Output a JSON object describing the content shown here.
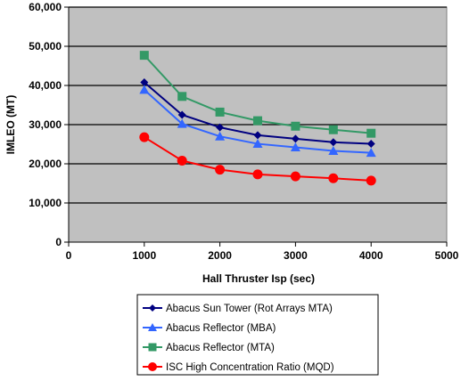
{
  "chart_data": {
    "type": "line",
    "title": "",
    "xlabel": "Hall Thruster Isp (sec)",
    "ylabel": "IMLEO (MT)",
    "xlim": [
      0,
      5000
    ],
    "ylim": [
      0,
      60000
    ],
    "x_ticks": [
      "0",
      "1000",
      "2000",
      "3000",
      "4000",
      "5000"
    ],
    "y_ticks": [
      "0",
      "10,000",
      "20,000",
      "30,000",
      "40,000",
      "50,000",
      "60,000"
    ],
    "x": [
      1000,
      1500,
      2000,
      2500,
      3000,
      3500,
      4000
    ],
    "grid": "horizontal major gridlines",
    "legend_placement": "bottom",
    "series": [
      {
        "name": "Abacus Sun Tower (Rot Arrays MTA)",
        "values": [
          40800,
          32500,
          29300,
          27300,
          26400,
          25500,
          25100
        ],
        "color": "#000080",
        "marker": "diamond"
      },
      {
        "name": "Abacus Reflector (MBA)",
        "values": [
          38900,
          30200,
          27000,
          25100,
          24200,
          23300,
          22800
        ],
        "color": "#3366ff",
        "marker": "triangle"
      },
      {
        "name": "Abacus Reflector (MTA)",
        "values": [
          47700,
          37200,
          33200,
          31000,
          29600,
          28700,
          27800
        ],
        "color": "#339966",
        "marker": "square"
      },
      {
        "name": "ISC High Concentration Ratio (MQD)",
        "values": [
          26800,
          20800,
          18500,
          17300,
          16800,
          16300,
          15700
        ],
        "color": "#ff0000",
        "marker": "circle"
      }
    ]
  },
  "colors": {
    "plot_background": "#c0c0c0",
    "gridline": "#000000"
  }
}
